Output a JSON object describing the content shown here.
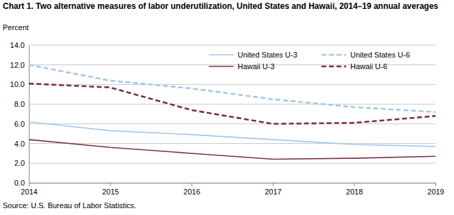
{
  "chart_data": {
    "type": "line",
    "title": "Chart 1. Two alternative measures of labor underutilization, United States and Hawaii, 2014–19 annual averages",
    "y_label": "Percent",
    "annotations": [
      "Source: U.S. Bureau of Labor Statistics."
    ],
    "x": [
      2014,
      2015,
      2016,
      2017,
      2018,
      2019
    ],
    "xlim": [
      2014,
      2019
    ],
    "xticks": [
      2014,
      2015,
      2016,
      2017,
      2018,
      2019
    ],
    "ylim": [
      0,
      14
    ],
    "yticks": [
      {
        "value": 0,
        "label": "0.0"
      },
      {
        "value": 2,
        "label": "2.0"
      },
      {
        "value": 4,
        "label": "4.0"
      },
      {
        "value": 6,
        "label": "6.0"
      },
      {
        "value": 8,
        "label": "8.0"
      },
      {
        "value": 10,
        "label": "10.0"
      },
      {
        "value": 12,
        "label": "12.0"
      },
      {
        "value": 14,
        "label": "14.0"
      }
    ],
    "grid": true,
    "legend": "top-right",
    "series": [
      {
        "name": "United States U-3",
        "color": "#a3c8e8",
        "line_style": "solid",
        "values": [
          6.2,
          5.3,
          4.9,
          4.4,
          3.9,
          3.7
        ]
      },
      {
        "name": "United States U-6",
        "color": "#a3c8e8",
        "line_style": "dashed",
        "values": [
          12.0,
          10.4,
          9.6,
          8.5,
          7.7,
          7.2
        ]
      },
      {
        "name": "Hawaii U-3",
        "color": "#7b2d43",
        "line_style": "solid",
        "values": [
          4.4,
          3.6,
          3.0,
          2.4,
          2.5,
          2.7
        ]
      },
      {
        "name": "Hawaii U-6",
        "color": "#7b2d43",
        "line_style": "dashed",
        "values": [
          10.1,
          9.7,
          7.4,
          6.0,
          6.1,
          6.8
        ]
      }
    ]
  }
}
